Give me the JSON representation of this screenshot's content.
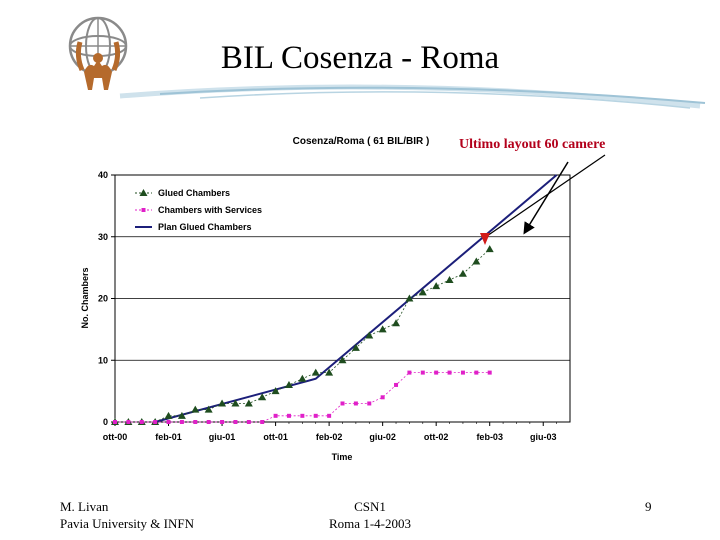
{
  "slide": {
    "title": "BIL Cosenza - Roma",
    "annotation": "Ultimo layout 60 camere",
    "footer_author": "M. Livan",
    "footer_affiliation": "Pavia University & INFN",
    "footer_event": "CSN1",
    "footer_date": "Roma 1-4-2003",
    "page_number": "9"
  },
  "colors": {
    "glued": "#1f4d1f",
    "services": "#e020c8",
    "plan": "#1c1f7a",
    "arrow_red": "#d21a1a",
    "swoosh": "#9ec3d6"
  },
  "chart_data": {
    "type": "line",
    "title": "Cosenza/Roma ( 61 BIL/BIR )",
    "xlabel": "Time",
    "ylabel": "No. Chambers",
    "x_ticks": [
      "ott-00",
      "feb-01",
      "giu-01",
      "ott-01",
      "feb-02",
      "giu-02",
      "ott-02",
      "feb-03",
      "giu-03"
    ],
    "x_unit": "months since ott-00",
    "xlim": [
      0,
      34
    ],
    "ylim": [
      0,
      40
    ],
    "y_ticks": [
      "0",
      "10",
      "20",
      "30",
      "40"
    ],
    "legend_position": "top-left",
    "series": [
      {
        "name": "Glued Chambers",
        "marker": "triangle",
        "x": [
          0,
          1,
          2,
          3,
          4,
          5,
          6,
          7,
          8,
          9,
          10,
          11,
          12,
          13,
          14,
          15,
          16,
          17,
          18,
          19,
          20,
          21,
          22,
          23,
          24,
          25,
          26,
          27,
          28
        ],
        "y": [
          0,
          0,
          0,
          0,
          1,
          1,
          2,
          2,
          3,
          3,
          3,
          4,
          5,
          6,
          7,
          8,
          8,
          10,
          12,
          14,
          15,
          16,
          20,
          21,
          22,
          23,
          24,
          26,
          28
        ]
      },
      {
        "name": "Chambers with Services",
        "marker": "square",
        "x": [
          0,
          1,
          2,
          3,
          4,
          5,
          6,
          7,
          8,
          9,
          10,
          11,
          12,
          13,
          14,
          15,
          16,
          17,
          18,
          19,
          20,
          21,
          22,
          23,
          24,
          25,
          26,
          27,
          28
        ],
        "y": [
          0,
          0,
          0,
          0,
          0,
          0,
          0,
          0,
          0,
          0,
          0,
          0,
          1,
          1,
          1,
          1,
          1,
          3,
          3,
          3,
          4,
          6,
          8,
          8,
          8,
          8,
          8,
          8,
          8
        ]
      },
      {
        "name": "Plan Glued Chambers",
        "marker": "none",
        "x": [
          3,
          15,
          33
        ],
        "y": [
          0,
          7,
          40
        ]
      }
    ]
  }
}
